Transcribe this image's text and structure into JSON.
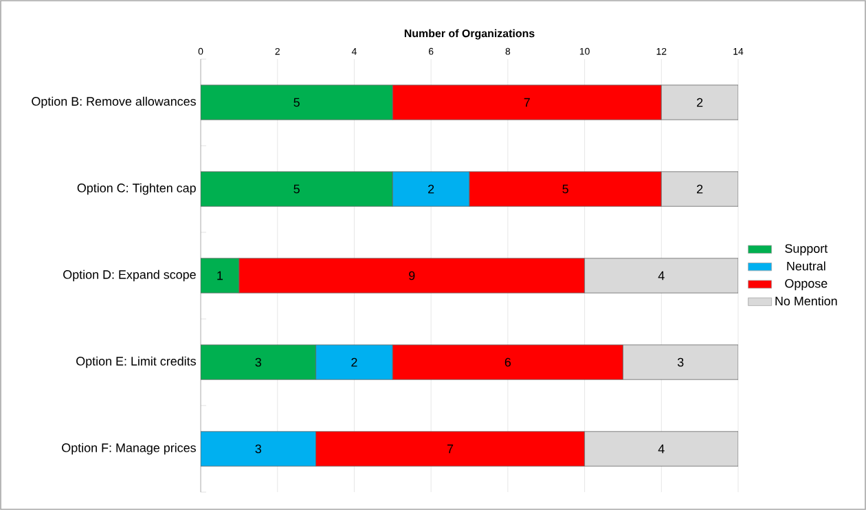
{
  "chart_data": {
    "type": "bar",
    "orientation": "horizontal",
    "stacked": true,
    "xlabel": "Number of Organizations",
    "categories": [
      "Option B: Remove allowances",
      "Option C: Tighten cap",
      "Option D: Expand scope",
      "Option E: Limit credits",
      "Option F: Manage prices"
    ],
    "series": [
      {
        "name": "Support",
        "color": "#00b050",
        "values": [
          5,
          5,
          1,
          3,
          null
        ]
      },
      {
        "name": "Neutral",
        "color": "#00b0f0",
        "values": [
          null,
          2,
          null,
          2,
          3
        ]
      },
      {
        "name": "Oppose",
        "color": "#ff0000",
        "values": [
          7,
          5,
          9,
          6,
          7
        ]
      },
      {
        "name": "No Mention",
        "color": "#d9d9d9",
        "values": [
          2,
          2,
          4,
          3,
          4
        ]
      }
    ],
    "xlim": [
      0,
      14
    ],
    "xticks": [
      0,
      2,
      4,
      6,
      8,
      10,
      12,
      14
    ],
    "grid": "x",
    "legend": "right",
    "data_labels": true
  }
}
